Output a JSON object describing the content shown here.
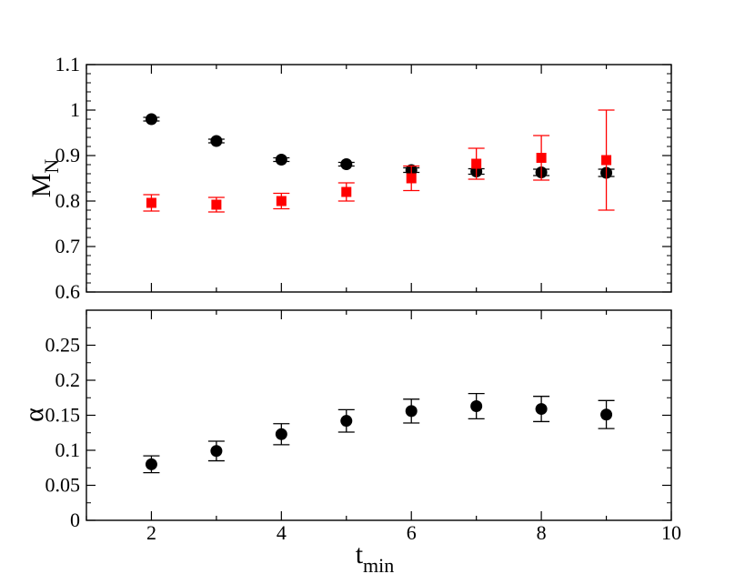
{
  "chart_data": [
    {
      "type": "scatter",
      "panel": "top",
      "ylabel": "M",
      "ylabel_sub": "N",
      "xlim": [
        1,
        10
      ],
      "ylim": [
        0.6,
        1.1
      ],
      "yticks": [
        "0.6",
        "0.7",
        "0.8",
        "0.9",
        "1",
        "1.1"
      ],
      "series": [
        {
          "color": "#000000",
          "marker": "circle",
          "x": [
            2,
            3,
            4,
            5,
            6,
            7,
            8,
            9
          ],
          "y": [
            0.98,
            0.932,
            0.891,
            0.881,
            0.868,
            0.865,
            0.863,
            0.862
          ],
          "err": [
            0.004,
            0.004,
            0.004,
            0.004,
            0.005,
            0.006,
            0.007,
            0.008
          ]
        },
        {
          "color": "#ff0000",
          "marker": "square",
          "x": [
            2,
            3,
            4,
            5,
            6,
            7,
            8,
            9
          ],
          "y": [
            0.796,
            0.792,
            0.8,
            0.82,
            0.85,
            0.882,
            0.895,
            0.89
          ],
          "err": [
            0.018,
            0.016,
            0.017,
            0.02,
            0.027,
            0.034,
            0.049,
            0.11
          ]
        }
      ]
    },
    {
      "type": "scatter",
      "panel": "bottom",
      "ylabel": "α",
      "xlabel": "t",
      "xlabel_sub": "min",
      "xlim": [
        1,
        10
      ],
      "ylim": [
        0,
        0.3
      ],
      "xticks": [
        "2",
        "4",
        "6",
        "8",
        "10"
      ],
      "yticks": [
        "0",
        "0.05",
        "0.1",
        "0.15",
        "0.2",
        "0.25"
      ],
      "series": [
        {
          "color": "#000000",
          "marker": "circle",
          "x": [
            2,
            3,
            4,
            5,
            6,
            7,
            8,
            9
          ],
          "y": [
            0.08,
            0.099,
            0.123,
            0.142,
            0.156,
            0.163,
            0.159,
            0.151
          ],
          "err": [
            0.012,
            0.014,
            0.015,
            0.016,
            0.017,
            0.018,
            0.018,
            0.02
          ]
        }
      ]
    }
  ]
}
